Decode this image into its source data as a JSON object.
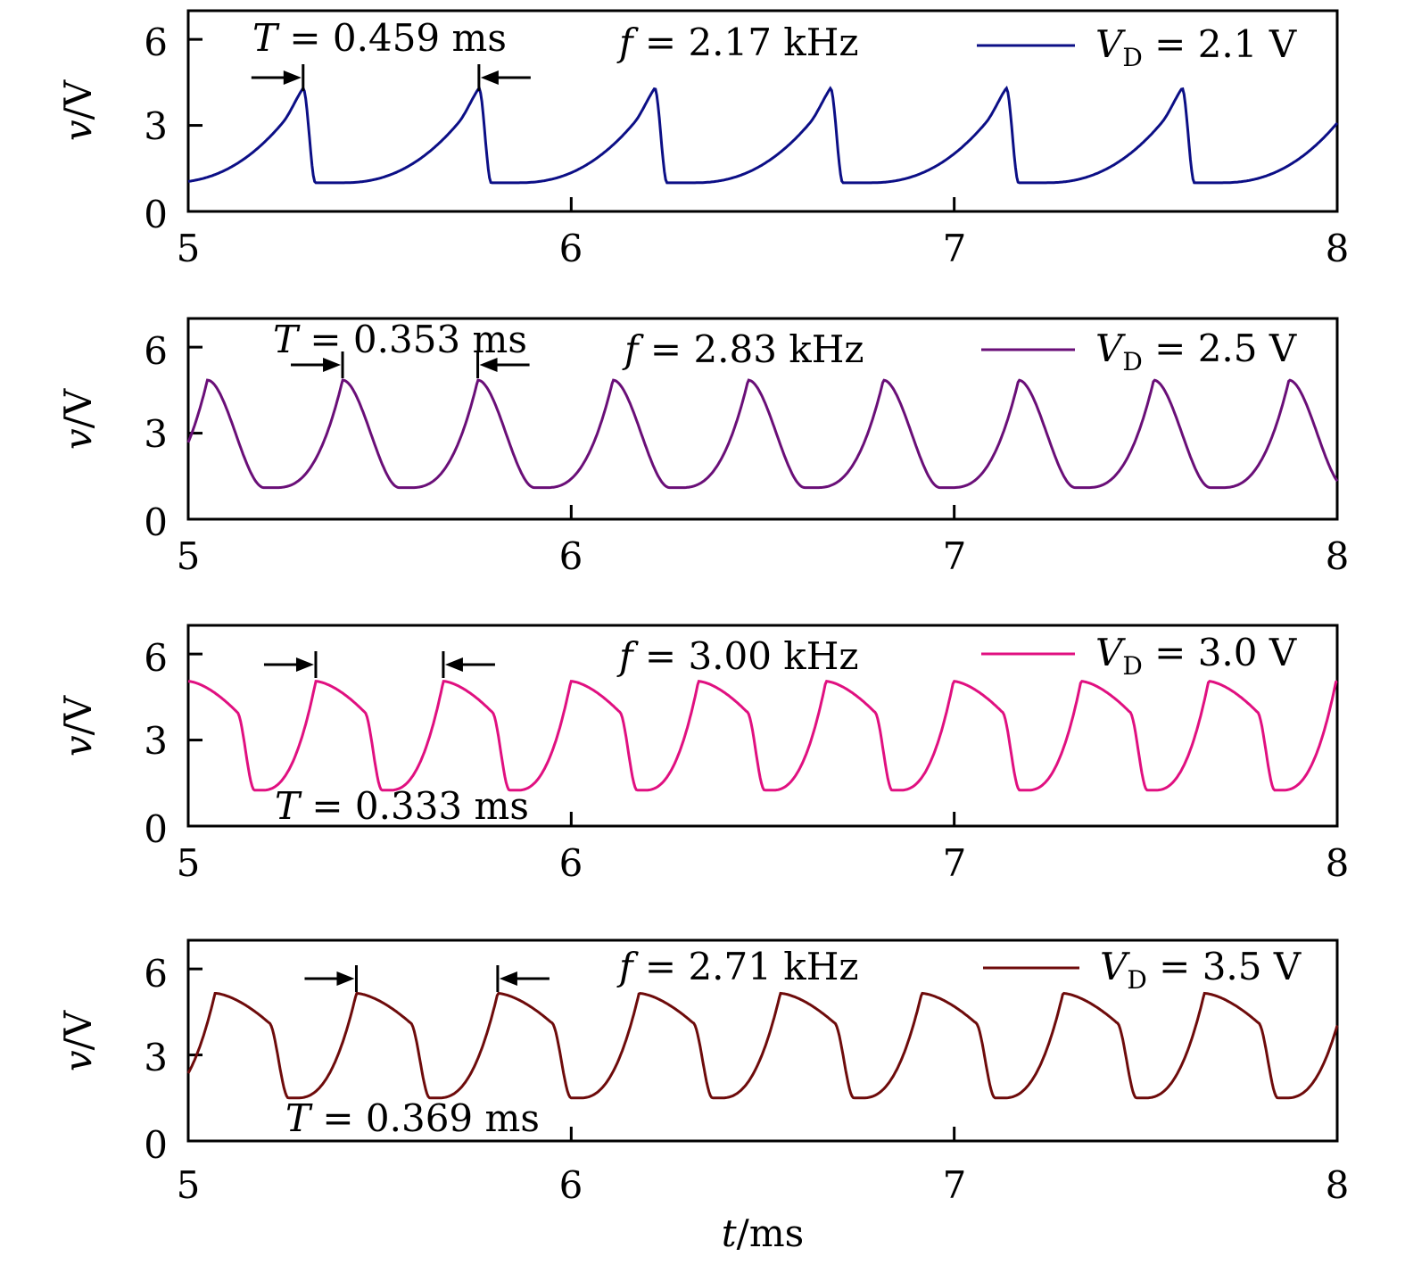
{
  "chart_data": [
    {
      "type": "line",
      "series": [
        {
          "name": "V_D = 2.1 V",
          "color": "#0c0f86",
          "period_ms": 0.459,
          "peak_v": 4.3,
          "trough_v": 1.0,
          "first_peak_t_ms": 5.3,
          "shape": "spike"
        }
      ],
      "xlim": [
        5,
        8
      ],
      "ylim": [
        0,
        7
      ],
      "xticks": [
        5,
        6,
        7,
        8
      ],
      "yticks": [
        0,
        3,
        6
      ],
      "ylabel": {
        "italic": "v",
        "rest": "/V"
      },
      "f_label": {
        "italic": "f",
        "rest": " = 2.17 kHz"
      },
      "T_label": {
        "italic": "T",
        "rest": " = 0.459 ms"
      },
      "legend": {
        "italic": "V",
        "sub": "D",
        "rest": " = 2.1 V"
      },
      "marker_times_ms": [
        5.3,
        5.759
      ]
    },
    {
      "type": "line",
      "series": [
        {
          "name": "V_D = 2.5 V",
          "color": "#6a0f78",
          "period_ms": 0.353,
          "peak_v": 4.85,
          "trough_v": 1.1,
          "first_peak_t_ms": 5.05,
          "shape": "mid"
        }
      ],
      "xlim": [
        5,
        8
      ],
      "ylim": [
        0,
        7
      ],
      "xticks": [
        5,
        6,
        7,
        8
      ],
      "yticks": [
        0,
        3,
        6
      ],
      "ylabel": {
        "italic": "v",
        "rest": "/V"
      },
      "f_label": {
        "italic": "f",
        "rest": " = 2.83 kHz"
      },
      "T_label": {
        "italic": "T",
        "rest": " = 0.353 ms"
      },
      "legend": {
        "italic": "V",
        "sub": "D",
        "rest": " = 2.5 V"
      },
      "marker_times_ms": [
        5.403,
        5.756
      ]
    },
    {
      "type": "line",
      "series": [
        {
          "name": "V_D = 3.0 V",
          "color": "#e01080",
          "period_ms": 0.333,
          "peak_v": 5.05,
          "trough_v": 1.25,
          "first_peak_t_ms": 5.0,
          "shape": "plateau"
        }
      ],
      "xlim": [
        5,
        8
      ],
      "ylim": [
        0,
        7
      ],
      "xticks": [
        5,
        6,
        7,
        8
      ],
      "yticks": [
        0,
        3,
        6
      ],
      "ylabel": {
        "italic": "v",
        "rest": "/V"
      },
      "f_label": {
        "italic": "f",
        "rest": " = 3.00 kHz"
      },
      "T_label": {
        "italic": "T",
        "rest": " = 0.333 ms"
      },
      "legend": {
        "italic": "V",
        "sub": "D",
        "rest": " = 3.0 V"
      },
      "marker_times_ms": [
        5.333,
        5.666
      ]
    },
    {
      "type": "line",
      "series": [
        {
          "name": "V_D = 3.5 V",
          "color": "#6e0b0b",
          "period_ms": 0.369,
          "peak_v": 5.15,
          "trough_v": 1.5,
          "first_peak_t_ms": 5.07,
          "shape": "plateau"
        }
      ],
      "xlim": [
        5,
        8
      ],
      "ylim": [
        0,
        7
      ],
      "xticks": [
        5,
        6,
        7,
        8
      ],
      "yticks": [
        0,
        3,
        6
      ],
      "ylabel": {
        "italic": "v",
        "rest": "/V"
      },
      "f_label": {
        "italic": "f",
        "rest": " = 2.71 kHz"
      },
      "T_label": {
        "italic": "T",
        "rest": " = 0.369 ms"
      },
      "legend": {
        "italic": "V",
        "sub": "D",
        "rest": " = 3.5 V"
      },
      "marker_times_ms": [
        5.439,
        5.808
      ]
    }
  ],
  "xlabel": {
    "italic": "t",
    "rest": "/ms"
  }
}
